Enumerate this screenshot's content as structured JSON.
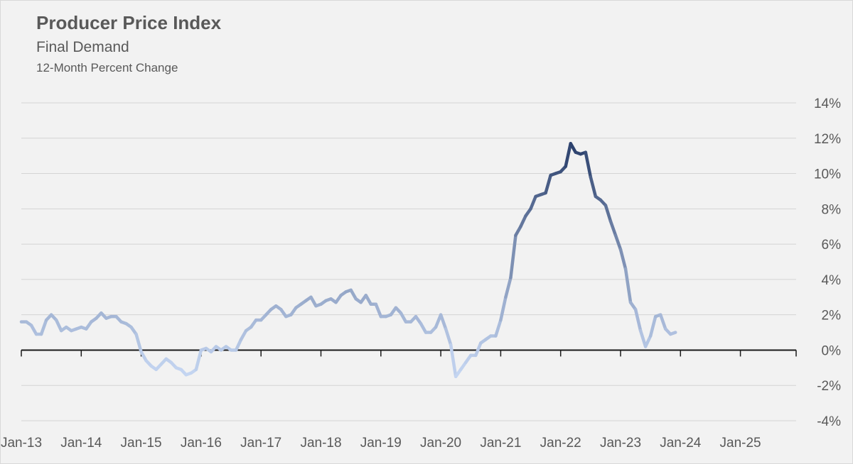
{
  "chart_data": {
    "type": "line",
    "title": "Producer Price Index",
    "subtitle": "Final Demand",
    "subtitle2": "12-Month Percent Change",
    "xlabel": "",
    "ylabel": "",
    "ylim": [
      -4,
      14
    ],
    "yticks": [
      -4,
      -2,
      0,
      2,
      4,
      6,
      8,
      10,
      12,
      14
    ],
    "ytick_labels": [
      "-4%",
      "-2%",
      "0%",
      "2%",
      "4%",
      "6%",
      "8%",
      "10%",
      "12%",
      "14%"
    ],
    "y_axis_side": "right",
    "grid": true,
    "legend": "none",
    "xtick_labels": [
      "Jan-13",
      "Jan-14",
      "Jan-15",
      "Jan-16",
      "Jan-17",
      "Jan-18",
      "Jan-19",
      "Jan-20",
      "Jan-21",
      "Jan-22",
      "Jan-23",
      "Jan-24",
      "Jan-25"
    ],
    "color_scale": {
      "low": "#c5d6f2",
      "high": "#2a3f6b",
      "note_domain": [
        -1.5,
        11.7
      ]
    },
    "series": [
      {
        "x": [
          "2013-01",
          "2013-02",
          "2013-03",
          "2013-04",
          "2013-05",
          "2013-06",
          "2013-07",
          "2013-08",
          "2013-09",
          "2013-10",
          "2013-11",
          "2013-12",
          "2014-01",
          "2014-02",
          "2014-03",
          "2014-04",
          "2014-05",
          "2014-06",
          "2014-07",
          "2014-08",
          "2014-09",
          "2014-10",
          "2014-11",
          "2014-12",
          "2015-01",
          "2015-02",
          "2015-03",
          "2015-04",
          "2015-05",
          "2015-06",
          "2015-07",
          "2015-08",
          "2015-09",
          "2015-10",
          "2015-11",
          "2015-12",
          "2016-01",
          "2016-02",
          "2016-03",
          "2016-04",
          "2016-05",
          "2016-06",
          "2016-07",
          "2016-08",
          "2016-09",
          "2016-10",
          "2016-11",
          "2016-12",
          "2017-01",
          "2017-02",
          "2017-03",
          "2017-04",
          "2017-05",
          "2017-06",
          "2017-07",
          "2017-08",
          "2017-09",
          "2017-10",
          "2017-11",
          "2017-12",
          "2018-01",
          "2018-02",
          "2018-03",
          "2018-04",
          "2018-05",
          "2018-06",
          "2018-07",
          "2018-08",
          "2018-09",
          "2018-10",
          "2018-11",
          "2018-12",
          "2019-01",
          "2019-02",
          "2019-03",
          "2019-04",
          "2019-05",
          "2019-06",
          "2019-07",
          "2019-08",
          "2019-09",
          "2019-10",
          "2019-11",
          "2019-12",
          "2020-01",
          "2020-02",
          "2020-03",
          "2020-04",
          "2020-05",
          "2020-06",
          "2020-07",
          "2020-08",
          "2020-09",
          "2020-10",
          "2020-11",
          "2020-12",
          "2021-01",
          "2021-02",
          "2021-03",
          "2021-04",
          "2021-05",
          "2021-06",
          "2021-07",
          "2021-08",
          "2021-09",
          "2021-10",
          "2021-11",
          "2021-12",
          "2022-01",
          "2022-02",
          "2022-03",
          "2022-04",
          "2022-05",
          "2022-06",
          "2022-07",
          "2022-08",
          "2022-09",
          "2022-10",
          "2022-11",
          "2022-12",
          "2023-01",
          "2023-02",
          "2023-03",
          "2023-04",
          "2023-05",
          "2023-06",
          "2023-07",
          "2023-08",
          "2023-09",
          "2023-10",
          "2023-11",
          "2023-12"
        ],
        "values": [
          1.6,
          1.6,
          1.4,
          0.9,
          0.9,
          1.7,
          2.0,
          1.7,
          1.1,
          1.3,
          1.1,
          1.2,
          1.3,
          1.2,
          1.6,
          1.8,
          2.1,
          1.8,
          1.9,
          1.9,
          1.6,
          1.5,
          1.3,
          0.9,
          -0.1,
          -0.6,
          -0.9,
          -1.1,
          -0.8,
          -0.5,
          -0.7,
          -1.0,
          -1.1,
          -1.4,
          -1.3,
          -1.1,
          0.0,
          0.1,
          -0.1,
          0.2,
          0.0,
          0.2,
          0.0,
          0.0,
          0.6,
          1.1,
          1.3,
          1.7,
          1.7,
          2.0,
          2.3,
          2.5,
          2.3,
          1.9,
          2.0,
          2.4,
          2.6,
          2.8,
          3.0,
          2.5,
          2.6,
          2.8,
          2.9,
          2.7,
          3.1,
          3.3,
          3.4,
          2.9,
          2.7,
          3.1,
          2.6,
          2.6,
          1.9,
          1.9,
          2.0,
          2.4,
          2.1,
          1.6,
          1.6,
          1.9,
          1.5,
          1.0,
          1.0,
          1.3,
          2.0,
          1.2,
          0.3,
          -1.5,
          -1.1,
          -0.7,
          -0.3,
          -0.3,
          0.4,
          0.6,
          0.8,
          0.8,
          1.7,
          3.0,
          4.1,
          6.5,
          7.0,
          7.6,
          8.0,
          8.7,
          8.8,
          8.9,
          9.9,
          10.0,
          10.1,
          10.4,
          11.7,
          11.2,
          11.1,
          11.2,
          9.8,
          8.7,
          8.5,
          8.2,
          7.3,
          6.5,
          5.7,
          4.6,
          2.7,
          2.3,
          1.1,
          0.2,
          0.8,
          1.9,
          2.0,
          1.2,
          0.9,
          1.0
        ]
      }
    ]
  }
}
